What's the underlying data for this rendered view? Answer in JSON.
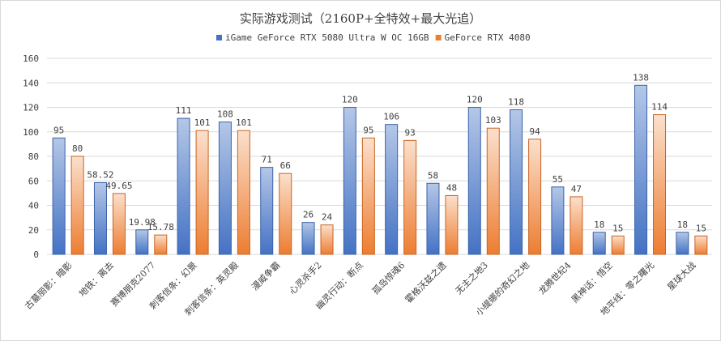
{
  "chart_data": {
    "type": "bar",
    "title": "实际游戏测试（2160P+全特效+最大光追）",
    "categories": [
      "古墓丽影：暗影",
      "地铁：离去",
      "赛博朋克2077",
      "刺客信条：幻景",
      "刺客信条：英灵殿",
      "漫威争霸",
      "心灵杀手2",
      "幽灵行动：断点",
      "孤岛惊魂6",
      "霍格沃兹之遗",
      "无主之地3",
      "小缇娜的奇幻之地",
      "龙腾世纪4",
      "黑神话：悟空",
      "地平线：零之曙光",
      "星球大战"
    ],
    "series": [
      {
        "name": "iGame GeForce RTX 5080 Ultra W OC 16GB",
        "values": [
          95,
          58.52,
          19.98,
          111,
          108,
          71,
          26,
          120,
          106,
          58,
          120,
          118,
          55,
          18,
          138,
          18
        ],
        "labels": [
          "95",
          "58.52",
          "19.98",
          "111",
          "108",
          "71",
          "26",
          "120",
          "106",
          "58",
          "120",
          "118",
          "55",
          "18",
          "138",
          "18"
        ],
        "color": "#4472c4"
      },
      {
        "name": "GeForce RTX 4080",
        "values": [
          80,
          49.65,
          15.78,
          101,
          101,
          66,
          24,
          95,
          93,
          48,
          103,
          94,
          47,
          15,
          114,
          15
        ],
        "labels": [
          "80",
          "49.65",
          "15.78",
          "101",
          "101",
          "66",
          "24",
          "95",
          "93",
          "48",
          "103",
          "94",
          "47",
          "15",
          "114",
          "15"
        ],
        "color": "#ed7d31"
      }
    ],
    "ylim": [
      0,
      160
    ],
    "yticks": [
      "0",
      "20",
      "40",
      "60",
      "80",
      "100",
      "120",
      "140",
      "160"
    ],
    "grid": true,
    "legend_position": "top"
  }
}
